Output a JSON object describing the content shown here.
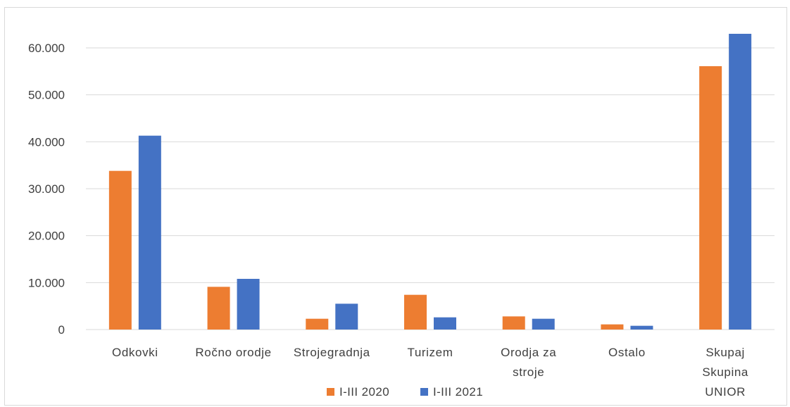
{
  "chart_data": {
    "type": "bar",
    "categories": [
      [
        "Odkovki"
      ],
      [
        "Ročno orodje"
      ],
      [
        "Strojegradnja"
      ],
      [
        "Turizem"
      ],
      [
        "Orodja za",
        "stroje"
      ],
      [
        "Ostalo"
      ],
      [
        "Skupaj",
        "Skupina",
        "UNIOR"
      ]
    ],
    "series": [
      {
        "name": "I-III 2020",
        "color": "#ED7D31",
        "values": [
          33800,
          9100,
          2300,
          7400,
          2800,
          1100,
          56100
        ]
      },
      {
        "name": "I-III 2021",
        "color": "#4472C4",
        "values": [
          41300,
          10800,
          5500,
          2600,
          2300,
          800,
          63000
        ]
      }
    ],
    "ylim": [
      0,
      60000
    ],
    "yticks": [
      0,
      10000,
      20000,
      30000,
      40000,
      50000,
      60000
    ],
    "ytick_labels": [
      "0",
      "10.000",
      "20.000",
      "30.000",
      "40.000",
      "50.000",
      "60.000"
    ],
    "title": "",
    "xlabel": "",
    "ylabel": "",
    "grid": true,
    "legend_position": "bottom",
    "gridline_color": "#d9d9d9"
  }
}
